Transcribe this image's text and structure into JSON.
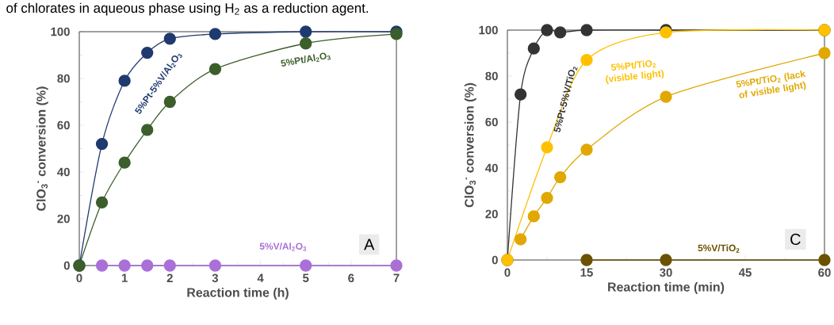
{
  "chart_data": [
    {
      "type": "line",
      "ylabel": "ClO$_{3}$$^{-}$ conversion (%)",
      "xlabel": "Reaction time (h)",
      "xlim": [
        0,
        7
      ],
      "ylim": [
        0,
        100
      ],
      "xticks": [
        0,
        1,
        2,
        3,
        4,
        5,
        6,
        7
      ],
      "yticks": [
        0,
        20,
        40,
        60,
        80,
        100
      ],
      "marker": "circle",
      "annotations": [
        "of chlorates in aqueous phase using H$_{2}$ as a reduction agent.",
        "A"
      ],
      "series": [
        {
          "name": "5%Pt-5%V/Al$_{2}$O$_{3}$",
          "color": "#1f3a6e",
          "x": [
            0,
            0.5,
            1,
            1.5,
            2,
            3,
            5,
            7
          ],
          "values": [
            0,
            52,
            79,
            91,
            97,
            99,
            100,
            100
          ]
        },
        {
          "name": "5%Pt/Al$_{2}$O$_{3}$",
          "color": "#3b5e2b",
          "x": [
            0,
            0.5,
            1,
            1.5,
            2,
            3,
            5,
            7
          ],
          "values": [
            0,
            27,
            44,
            58,
            70,
            84,
            95,
            99
          ]
        },
        {
          "name": "5%V/Al$_{2}$O$_{3}$",
          "color": "#a970d8",
          "x": [
            0.5,
            1,
            1.5,
            2,
            3,
            5,
            7
          ],
          "values": [
            0,
            0,
            0,
            0,
            0,
            0,
            0
          ]
        }
      ]
    },
    {
      "type": "line",
      "ylabel": "ClO$_{3}$$^{-}$ conversion (%)",
      "xlabel": "Reaction time (min)",
      "xlim": [
        0,
        60
      ],
      "ylim": [
        0,
        100
      ],
      "xticks": [
        0,
        15,
        30,
        45,
        60
      ],
      "yticks": [
        0,
        20,
        40,
        60,
        80,
        100
      ],
      "marker": "circle",
      "annotations": [
        "C"
      ],
      "series": [
        {
          "name": "5%Pt-5%V/TiO$_{2}$",
          "color": "#333333",
          "x": [
            0,
            2.5,
            5,
            7.5,
            10,
            15,
            30,
            60
          ],
          "values": [
            0,
            72,
            92,
            100,
            99,
            100,
            100,
            100
          ]
        },
        {
          "name": "5%Pt/TiO$_{2}$ (visible light)",
          "color": "#ffc000",
          "x": [
            0,
            7.5,
            15,
            30,
            60
          ],
          "values": [
            0,
            49,
            87,
            99,
            100
          ]
        },
        {
          "name": "5%Pt/TiO$_{2}$ (lack of visible light)",
          "color": "#e0a800",
          "x": [
            2.5,
            5,
            7.5,
            10,
            15,
            30,
            60
          ],
          "values": [
            9,
            19,
            27,
            36,
            48,
            71,
            90
          ]
        },
        {
          "name": "5%V/TiO$_{2}$",
          "color": "#6b5200",
          "x": [
            15,
            30,
            60
          ],
          "values": [
            0,
            0,
            0
          ]
        }
      ]
    }
  ]
}
